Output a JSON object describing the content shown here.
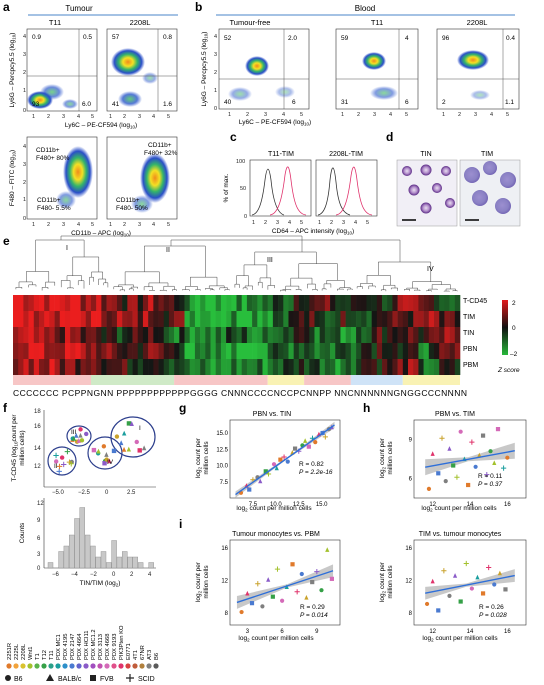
{
  "panels": {
    "a": {
      "label": "a",
      "header": "Tumour",
      "cols": [
        "T11",
        "2208L"
      ],
      "top": {
        "ylabel": "Ly6G – Percpcy5.5 (log",
        "ylabel_sub": "10",
        "xlabel": "Ly6C – PE-CF594 (log",
        "xlabel_sub": "10",
        "quads": [
          [
            "0.9",
            "0.5",
            "93",
            "6.0"
          ],
          [
            "57",
            "0.8",
            "41",
            "1.6"
          ]
        ]
      },
      "bottom": {
        "ylabel": "F480 – FITC (log",
        "ylabel_sub": "10",
        "xlabel": "CD11b – APC (log",
        "xlabel_sub": "10",
        "gates": [
          [
            "CD11b+",
            "F480+ 80%",
            "CD11b+",
            "F480- 5.5%"
          ],
          [
            "CD11b+",
            "F480+ 32%",
            "CD11b+",
            "F480- 50%"
          ]
        ]
      }
    },
    "b": {
      "label": "b",
      "header": "Blood",
      "cols": [
        "Tumour-free",
        "T11",
        "2208L"
      ],
      "ylabel": "Ly6G – Percpcy5.5 (log",
      "ylabel_sub": "10",
      "xlabel": "Ly6C – PE-CF594 (log",
      "xlabel_sub": "10",
      "quads": [
        [
          "52",
          "2.0",
          "40",
          "6"
        ],
        [
          "59",
          "4",
          "31",
          "6"
        ],
        [
          "96",
          "0.4",
          "2",
          "1.1"
        ]
      ]
    },
    "c": {
      "label": "c",
      "cols": [
        "T11-TIM",
        "2208L-TIM"
      ],
      "ylabel": "% of max.",
      "xlabel": "CD64 – APC intensity (log",
      "xlabel_sub": "10"
    },
    "d": {
      "label": "d",
      "cols": [
        "TIN",
        "TIM"
      ]
    },
    "e": {
      "label": "e",
      "clusters": [
        "I",
        "II",
        "III",
        "IV"
      ],
      "rows": [
        "T-CD45",
        "TIM",
        "TIN",
        "PBN",
        "PBM"
      ],
      "colorbar_ticks": [
        "2",
        "0",
        "–2"
      ],
      "colorbar_label": "Z score",
      "models": "CCCCCCC PCPPNGNN PPPPPPPPPPPPGGGG CNNNCCCCNCCPCNNPP NNCNNNNNNGNGGCCCNNNN"
    },
    "f": {
      "label": "f",
      "scatter_ylabel": "T-CD45 (log",
      "scatter_ylabel_2": "count per",
      "scatter_ylabel_3": "million cells)",
      "clusters": [
        "I",
        "II",
        "III",
        "IV"
      ],
      "hist_ylabel": "Counts",
      "hist_xlabel": "TIN/TIM (log",
      "hist_xlabel_sub": "2",
      "legend_items": [
        "2251R",
        "2225L",
        "2208L",
        "Wnt1",
        "T1",
        "T12",
        "T11",
        "PDX MC1",
        "PDX 4195",
        "PDX 2147",
        "PDX 4664",
        "PDX HCI11",
        "PDX MC1.2",
        "PDX 3113",
        "PDX 4668",
        "PDX 9193",
        "PIK3Pten KO",
        "E0771",
        "4T1",
        "67NR",
        "AT3",
        "B6"
      ],
      "strains": [
        "B6",
        "BALB/c",
        "FVB",
        "SCID"
      ]
    },
    "g": {
      "label": "g",
      "title": "PBN vs. TIN",
      "ylabel": "log",
      "ylabel_sub": "2",
      "ylabel_rest": "count per",
      "ylabel_rest2": "million cells",
      "xlabel": "log",
      "xlabel_sub": "2",
      "xlabel_rest": "count per million cells",
      "R": "R = 0.82",
      "P": "P = 2.2e-16"
    },
    "h": {
      "label": "h",
      "title": "PBM vs. TIM",
      "ylabel": "log",
      "ylabel_sub": "2",
      "ylabel_rest": "count per",
      "ylabel_rest2": "million cells",
      "xlabel": "log",
      "xlabel_sub": "2",
      "xlabel_rest": "count per million cells",
      "R": "R = 0.11",
      "P": "P = 0.37"
    },
    "i": {
      "label": "i",
      "left": {
        "title": "Tumour monocytes vs. PBM",
        "R": "R = 0.29",
        "P": "P = 0.014"
      },
      "right": {
        "title": "TIM vs. tumour monocytes",
        "R": "R = 0.26",
        "P": "P = 0.028"
      },
      "ylabel": "log",
      "ylabel_sub": "2",
      "ylabel_rest": "count per",
      "ylabel_rest2": "million cells",
      "xlabel": "log",
      "xlabel_sub": "2",
      "xlabel_rest": "count per million cells"
    }
  },
  "colors": {
    "accent_line": "#4a86c8",
    "heat_red": "#e0191c",
    "heat_green": "#1fa334",
    "fit_line": "#2e6fd9"
  },
  "chart_data": [
    {
      "type": "bar",
      "title": "",
      "xlabel": "TIN/TIM (log2)",
      "ylabel": "Counts",
      "categories": [
        "-6.5",
        "-6",
        "-5.5",
        "-5",
        "-4.5",
        "-4",
        "-3.5",
        "-3",
        "-2.5",
        "-2",
        "-1.5",
        "-1",
        "-0.5",
        "0",
        "0.5",
        "1",
        "1.5",
        "2",
        "2.5",
        "3"
      ],
      "values": [
        1,
        0,
        3,
        4,
        6,
        9,
        11,
        6,
        4,
        2,
        3,
        1,
        5,
        2,
        3,
        2,
        2,
        1,
        0,
        1
      ],
      "ylim": [
        0,
        12
      ]
    },
    {
      "type": "scatter",
      "title": "PBN vs. TIN",
      "xlim": [
        5,
        17
      ],
      "ylim": [
        5,
        17
      ],
      "xticks": [
        "7.5",
        "10.0",
        "12.5",
        "15.0"
      ],
      "yticks": [
        "7.5",
        "10.0",
        "12.5",
        "15.0"
      ],
      "x": [
        6.2,
        6.8,
        7.1,
        7.5,
        8.0,
        8.3,
        8.9,
        9.2,
        9.8,
        10.1,
        10.5,
        10.9,
        11.3,
        11.8,
        12.1,
        12.5,
        12.9,
        13.2,
        13.6,
        14.0,
        14.3,
        14.7,
        15.1,
        15.4,
        15.8,
        16.1
      ],
      "y": [
        5.8,
        6.9,
        6.3,
        7.8,
        8.2,
        7.6,
        9.1,
        8.7,
        10.2,
        9.6,
        10.9,
        11.3,
        10.6,
        12.0,
        12.6,
        12.2,
        13.1,
        13.8,
        12.9,
        14.2,
        13.6,
        14.8,
        15.0,
        14.4,
        15.6,
        15.9
      ],
      "R": 0.82,
      "P": "2.2e-16"
    },
    {
      "type": "scatter",
      "title": "PBM vs. TIM",
      "xlim": [
        11,
        17
      ],
      "ylim": [
        4.5,
        10.5
      ],
      "xticks": [
        "12",
        "14",
        "16"
      ],
      "yticks": [
        "6",
        "9"
      ],
      "x": [
        11.8,
        12.0,
        12.3,
        12.5,
        12.7,
        12.9,
        13.1,
        13.3,
        13.5,
        13.7,
        13.9,
        14.1,
        14.3,
        14.5,
        14.7,
        14.9,
        15.1,
        15.3,
        15.5,
        15.8,
        16.0
      ],
      "y": [
        5.2,
        7.9,
        6.4,
        9.1,
        5.8,
        8.3,
        7.0,
        6.1,
        9.6,
        7.5,
        5.5,
        8.8,
        6.9,
        7.8,
        9.3,
        6.3,
        8.1,
        7.2,
        9.8,
        6.8,
        7.6
      ],
      "R": 0.11,
      "P": "0.37"
    },
    {
      "type": "scatter",
      "title": "Tumour monocytes vs. PBM",
      "xlim": [
        1.5,
        11
      ],
      "ylim": [
        6.5,
        17
      ],
      "xticks": [
        "3",
        "6",
        "9"
      ],
      "yticks": [
        "8",
        "12",
        "16"
      ],
      "x": [
        2.5,
        3.0,
        3.4,
        3.9,
        4.3,
        4.8,
        5.2,
        5.6,
        6.0,
        6.4,
        6.9,
        7.3,
        7.7,
        8.1,
        8.6,
        9.0,
        9.4,
        9.9,
        10.3
      ],
      "y": [
        8.1,
        10.4,
        9.2,
        11.6,
        8.8,
        12.1,
        10.0,
        13.4,
        9.5,
        11.2,
        14.0,
        10.6,
        12.8,
        9.9,
        11.8,
        13.1,
        10.8,
        15.8,
        12.2
      ],
      "R": 0.29,
      "P": "0.014"
    },
    {
      "type": "scatter",
      "title": "TIM vs. tumour monocytes",
      "xlim": [
        11,
        17
      ],
      "ylim": [
        6.5,
        17
      ],
      "xticks": [
        "12",
        "14",
        "16"
      ],
      "yticks": [
        "8",
        "12",
        "16"
      ],
      "x": [
        11.7,
        12.0,
        12.3,
        12.6,
        12.9,
        13.2,
        13.5,
        13.8,
        14.1,
        14.4,
        14.7,
        15.0,
        15.3,
        15.6,
        15.9
      ],
      "y": [
        9.1,
        11.9,
        8.3,
        13.2,
        10.1,
        12.6,
        9.4,
        14.1,
        11.0,
        12.4,
        10.4,
        13.6,
        11.5,
        12.9,
        10.9
      ],
      "R": 0.26,
      "P": "0.028"
    }
  ]
}
